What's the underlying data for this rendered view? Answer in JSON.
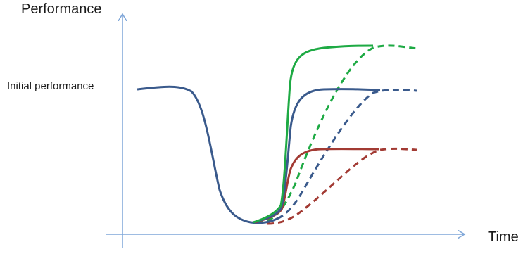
{
  "y_axis_title": "Performance",
  "x_axis_title": "Time",
  "reference_label": "Initial performance",
  "colors": {
    "axis": "#7ea6d8",
    "blue": "#3a5a8c",
    "green": "#1eaa44",
    "red": "#a23a33"
  }
}
